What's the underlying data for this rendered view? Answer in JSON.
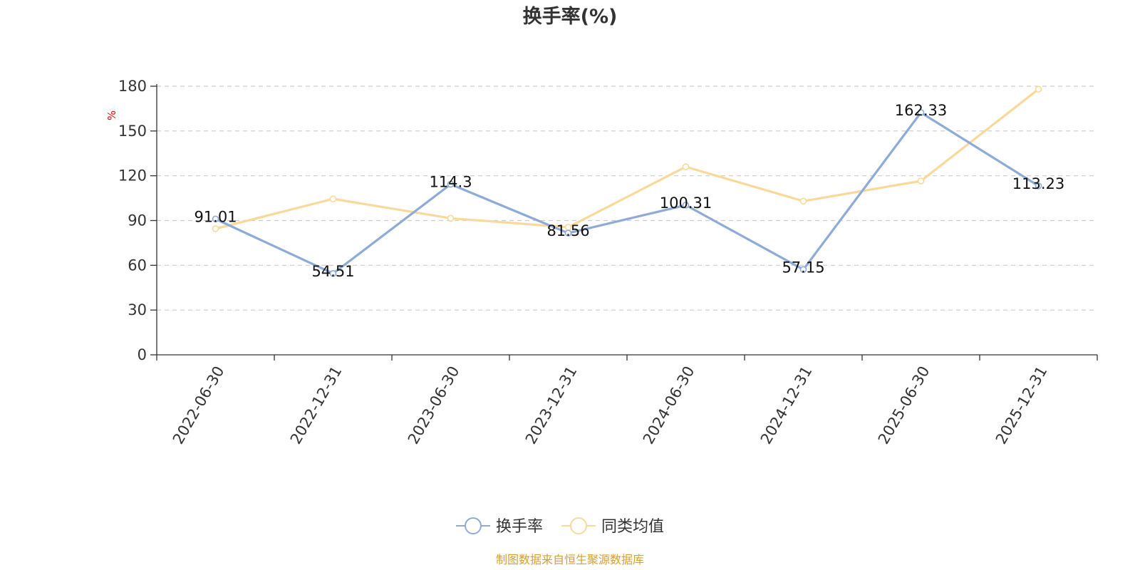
{
  "chart_data": {
    "type": "line",
    "title": "换手率(%)",
    "ylabel": "%",
    "ylim": [
      0,
      180
    ],
    "yticks": [
      0,
      30,
      60,
      90,
      120,
      150,
      180
    ],
    "categories": [
      "2022-06-30",
      "2022-12-31",
      "2023-06-30",
      "2023-12-31",
      "2024-06-30",
      "2024-12-31",
      "2025-06-30",
      "2025-12-31"
    ],
    "series": [
      {
        "name": "换手率",
        "color": "#8eaad6",
        "values": [
          91.01,
          54.51,
          114.3,
          81.56,
          100.31,
          57.15,
          162.33,
          113.23
        ],
        "show_labels": true
      },
      {
        "name": "同类均值",
        "color": "#f9d99a",
        "values": [
          84.5,
          104.5,
          91.5,
          85.5,
          126.0,
          103.0,
          116.5,
          178.0
        ],
        "show_labels": false
      }
    ],
    "grid": true,
    "legend_position": "bottom",
    "source": "制图数据来自恒生聚源数据库",
    "colors": {
      "axis": "#333333",
      "grid": "#cccccc",
      "unit": "#ff0000",
      "source": "#d4a030"
    }
  }
}
